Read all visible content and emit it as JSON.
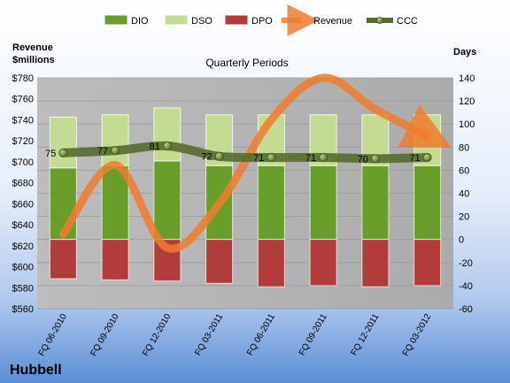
{
  "chart_data": {
    "type": "bar",
    "title": "Quarterly Periods",
    "company": "Hubbell",
    "left_axis": {
      "label_line1": "Revenue",
      "label_line2": "$millions",
      "min": 560,
      "max": 780,
      "step": 20,
      "prefix": "$"
    },
    "right_axis": {
      "label": "Days",
      "min": -60,
      "max": 140,
      "step": 20
    },
    "categories": [
      "FQ 06-2010",
      "FQ 09-2010",
      "FQ 12-2010",
      "FQ 03-2011",
      "FQ 06-2011",
      "FQ 09-2011",
      "FQ 12-2011",
      "FQ 03-2012"
    ],
    "series": [
      {
        "name": "DIO",
        "kind": "stacked-bar",
        "axis": "right",
        "values": [
          62,
          64,
          68,
          64,
          64,
          64,
          64,
          64
        ],
        "color": "#6a9e2a"
      },
      {
        "name": "DSO",
        "kind": "stacked-bar",
        "axis": "right",
        "values": [
          44,
          44,
          46,
          44,
          44,
          44,
          44,
          44
        ],
        "color": "#c3dc92"
      },
      {
        "name": "DPO",
        "kind": "bar-below-zero",
        "axis": "right",
        "values": [
          -34,
          -35,
          -36,
          -38,
          -41,
          -40,
          -41,
          -40
        ],
        "color": "#b23b3b"
      },
      {
        "name": "Revenue",
        "kind": "curve-arrow",
        "axis": "left",
        "values": [
          631,
          697,
          618,
          660,
          740,
          780,
          750,
          725
        ],
        "color": "#f07b2d"
      },
      {
        "name": "CCC",
        "kind": "line-markers",
        "axis": "right",
        "values": [
          75,
          77,
          81,
          72,
          71,
          71,
          70,
          71
        ],
        "labels": [
          "75",
          "77",
          "81",
          "72",
          "71",
          "71",
          "70",
          "71"
        ],
        "color": "#566b2d"
      }
    ],
    "legend_position": "top",
    "grid": true,
    "colors": {
      "page_bg_top": "#ffffff",
      "page_bg_bottom": "#5b8ed6",
      "plot_bg": "#b3b3b3",
      "grid": "#9a9a9a"
    }
  }
}
